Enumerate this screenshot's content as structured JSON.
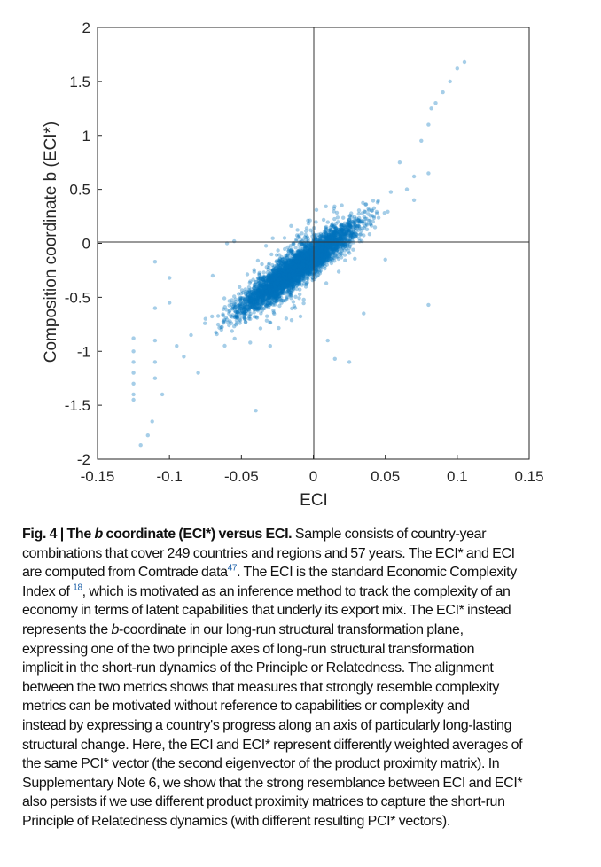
{
  "chart_data": {
    "type": "scatter",
    "title": "",
    "xlabel": "ECI",
    "ylabel": "Composition coordinate b (ECI*)",
    "xlim": [
      -0.15,
      0.15
    ],
    "ylim": [
      -2,
      2
    ],
    "xticks": [
      "-0.15",
      "-0.1",
      "-0.05",
      "0",
      "0.05",
      "0.1",
      "0.15"
    ],
    "xtick_values": [
      -0.15,
      -0.1,
      -0.05,
      0,
      0.05,
      0.1,
      0.15
    ],
    "yticks": [
      "2",
      "1.5",
      "1",
      "0.5",
      "0",
      "-0.5",
      "-1",
      "-1.5",
      "-2"
    ],
    "ytick_values": [
      2,
      1.5,
      1,
      0.5,
      0,
      -0.5,
      -1,
      -1.5,
      -2
    ],
    "reference_lines": {
      "x": 0,
      "y": 0
    },
    "grid": false,
    "marker_color": "#0072BD",
    "trend": {
      "slope": 9.5,
      "intercept": -0.12,
      "x_range": [
        -0.085,
        0.065
      ],
      "spread": 0.12
    },
    "points": [
      [
        -0.125,
        -0.88
      ],
      [
        -0.125,
        -1.0
      ],
      [
        -0.125,
        -1.1
      ],
      [
        -0.125,
        -1.2
      ],
      [
        -0.125,
        -1.3
      ],
      [
        -0.125,
        -1.4
      ],
      [
        -0.125,
        -1.45
      ],
      [
        -0.12,
        -1.87
      ],
      [
        -0.115,
        -1.78
      ],
      [
        -0.112,
        -1.65
      ],
      [
        -0.11,
        -0.17
      ],
      [
        -0.11,
        -0.6
      ],
      [
        -0.11,
        -0.9
      ],
      [
        -0.11,
        -1.1
      ],
      [
        -0.11,
        -1.25
      ],
      [
        -0.105,
        -1.4
      ],
      [
        -0.1,
        -0.32
      ],
      [
        -0.1,
        -0.55
      ],
      [
        -0.095,
        -0.95
      ],
      [
        -0.09,
        -1.05
      ],
      [
        -0.06,
        0.0
      ],
      [
        -0.055,
        0.02
      ],
      [
        -0.04,
        -1.55
      ],
      [
        -0.03,
        -0.95
      ],
      [
        -0.02,
        0.05
      ],
      [
        0.01,
        -0.9
      ],
      [
        0.015,
        -1.07
      ],
      [
        0.025,
        -1.1
      ],
      [
        0.035,
        -0.65
      ],
      [
        0.05,
        -0.15
      ],
      [
        0.06,
        0.75
      ],
      [
        0.07,
        0.62
      ],
      [
        0.08,
        0.65
      ],
      [
        0.08,
        -0.57
      ],
      [
        0.075,
        0.95
      ],
      [
        0.08,
        1.1
      ],
      [
        0.082,
        1.25
      ],
      [
        0.085,
        1.3
      ],
      [
        0.09,
        1.4
      ],
      [
        0.095,
        1.5
      ],
      [
        0.1,
        1.62
      ],
      [
        0.105,
        1.68
      ],
      [
        0.07,
        0.4
      ],
      [
        0.065,
        0.5
      ],
      [
        -0.07,
        -0.3
      ],
      [
        -0.075,
        -0.7
      ],
      [
        -0.08,
        -1.2
      ],
      [
        -0.085,
        -0.85
      ]
    ]
  },
  "caption": {
    "fig_label": "Fig. 4 | ",
    "title_pre": "The ",
    "title_italic": "b",
    "title_post": " coordinate (ECI*) versus ECI.",
    "l1": " Sample consists of country-year",
    "l2": "combinations that cover 249 countries and regions and 57 years. The ECI* and ECI",
    "l3a": "are computed from Comtrade data",
    "ref47": "47",
    "l3b": ". The ECI is the standard Economic Complexity",
    "l4a": "Index of ",
    "ref18": "18",
    "l4b": ", which is motivated as an inference method to track the complexity of an",
    "l5": "economy in terms of latent capabilities that underly its export mix. The ECI* instead",
    "l6a": "represents the ",
    "l6i": "b",
    "l6b": "-coordinate in our long-run structural transformation plane,",
    "l7": "expressing one of the two principle axes of long-run structural transformation",
    "l8": "implicit in the short-run dynamics of the Principle or Relatedness. The alignment",
    "l9": "between the two metrics shows that measures that strongly resemble complexity",
    "l10": "metrics can be motivated without reference to capabilities or complexity and",
    "l11": "instead by expressing a country's progress along an axis of particularly long-lasting",
    "l12": "structural change. Here, the ECI and ECI* represent differently weighted averages of",
    "l13": "the same PCI* vector (the second eigenvector of the product proximity matrix). In",
    "l14": "Supplementary Note 6, we show that the strong resemblance between ECI and ECI*",
    "l15": "also persists if we use different product proximity matrices to capture the short-run",
    "l16": "Principle of Relatedness dynamics (with different resulting PCI* vectors)."
  }
}
